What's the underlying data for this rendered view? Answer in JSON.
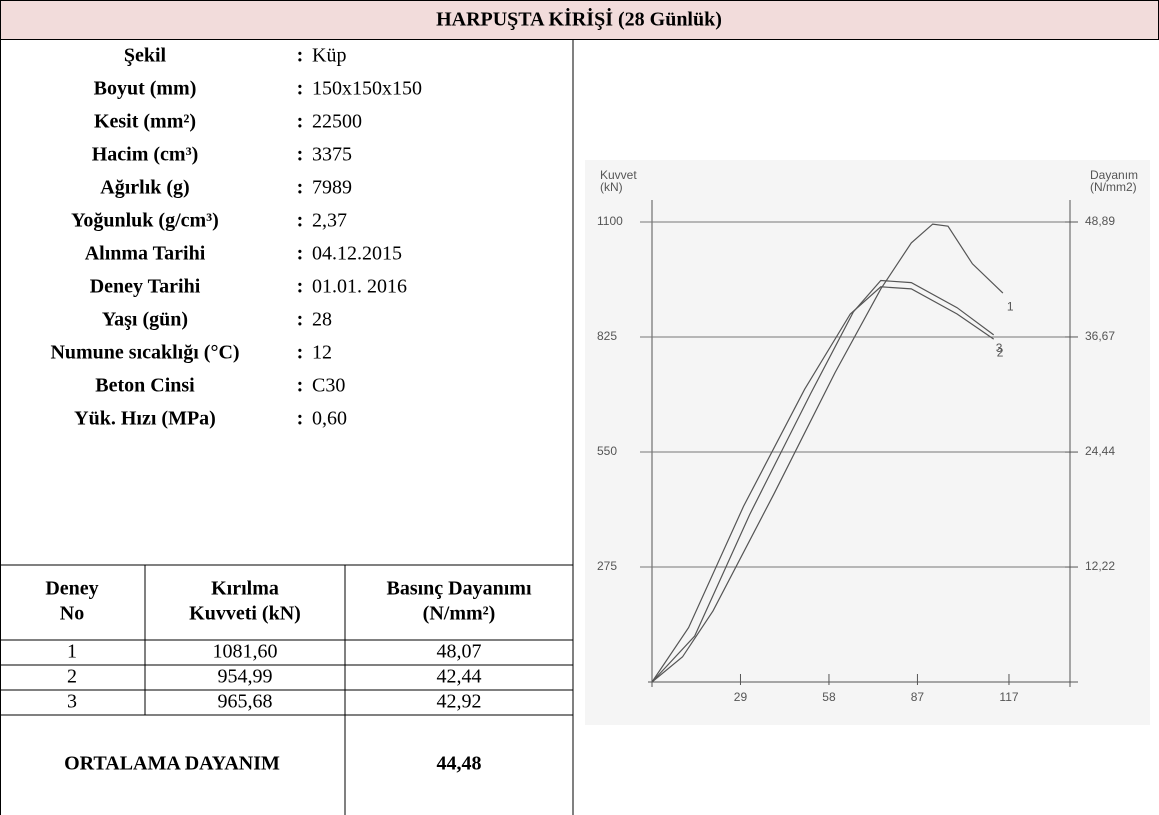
{
  "title": "HARPUŞTA KİRİŞİ (28 Günlük)",
  "separator": ":",
  "properties": [
    {
      "label": "Şekil",
      "value": "Küp"
    },
    {
      "label": "Boyut (mm)",
      "value": "150x150x150"
    },
    {
      "label": "Kesit (mm²)",
      "value": "22500"
    },
    {
      "label": "Hacim (cm³)",
      "value": "3375"
    },
    {
      "label": "Ağırlık (g)",
      "value": "7989"
    },
    {
      "label": "Yoğunluk (g/cm³)",
      "value": "2,37"
    },
    {
      "label": "Alınma Tarihi",
      "value": "04.12.2015"
    },
    {
      "label": "Deney Tarihi",
      "value": "01.01. 2016"
    },
    {
      "label": "Yaşı (gün)",
      "value": "28"
    },
    {
      "label": "Numune sıcaklığı (°C)",
      "value": "12"
    },
    {
      "label": "Beton Cinsi",
      "value": "C30"
    },
    {
      "label": "Yük. Hızı (MPa)",
      "value": "0,60"
    }
  ],
  "table": {
    "header": [
      [
        "Deney",
        "No"
      ],
      [
        "Kırılma",
        "Kuvveti (kN)"
      ],
      [
        "Basınç Dayanımı",
        "(N/mm²)"
      ]
    ],
    "rows": [
      [
        "1",
        "1081,60",
        "48,07"
      ],
      [
        "2",
        "954,99",
        "42,44"
      ],
      [
        "3",
        "965,68",
        "42,92"
      ]
    ],
    "footer": [
      "ORTALAMA DAYANIM",
      "44,48"
    ]
  },
  "chart_data": {
    "type": "line",
    "y_label": [
      "Kuvvet",
      "(kN)"
    ],
    "y2_label": [
      "Dayanım",
      "(N/mm2)"
    ],
    "xlim": [
      0,
      137
    ],
    "xticks": [
      29,
      58,
      87,
      117
    ],
    "ylim": [
      0,
      1100
    ],
    "yticks": [
      275,
      550,
      825,
      1100
    ],
    "y2lim": [
      0,
      48.89
    ],
    "y2ticks": [
      {
        "value": 12.22,
        "label": "12,22"
      },
      {
        "value": 24.44,
        "label": "24,44"
      },
      {
        "value": 36.67,
        "label": "36,67"
      },
      {
        "value": 48.89,
        "label": "48,89"
      }
    ],
    "grid": true,
    "color": "#555555",
    "series": [
      {
        "name": "1",
        "x": [
          0,
          10,
          20,
          40,
          60,
          75,
          85,
          92,
          97,
          105,
          115
        ],
        "values": [
          0,
          60,
          170,
          450,
          740,
          940,
          1050,
          1095,
          1090,
          1000,
          930
        ]
      },
      {
        "name": "2",
        "x": [
          0,
          12,
          30,
          50,
          65,
          75,
          85,
          100,
          112
        ],
        "values": [
          0,
          130,
          420,
          700,
          880,
          945,
          940,
          880,
          820
        ]
      },
      {
        "name": "3",
        "x": [
          0,
          14,
          32,
          52,
          66,
          75,
          85,
          100,
          112
        ],
        "values": [
          0,
          110,
          400,
          690,
          885,
          960,
          955,
          895,
          830
        ]
      }
    ]
  }
}
